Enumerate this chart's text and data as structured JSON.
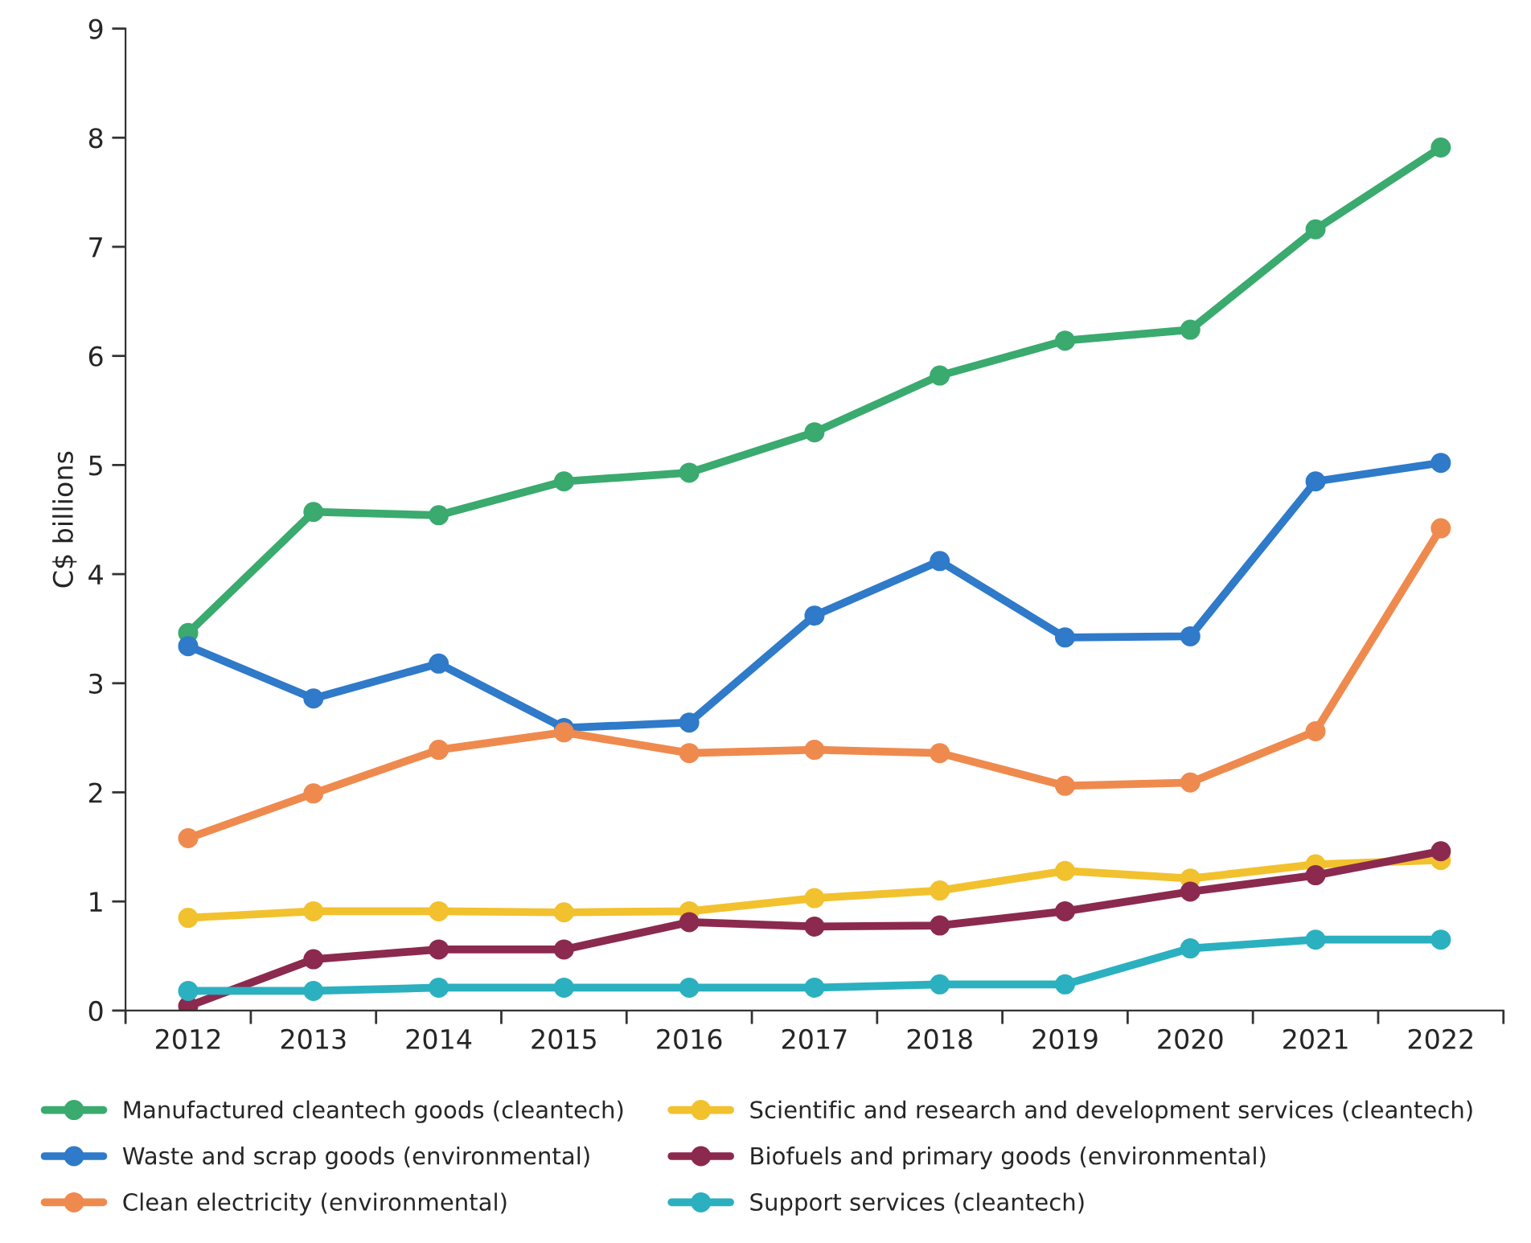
{
  "chart_data": {
    "type": "line",
    "ylabel": "C$ billions",
    "categories": [
      "2012",
      "2013",
      "2014",
      "2015",
      "2016",
      "2017",
      "2018",
      "2019",
      "2020",
      "2021",
      "2022"
    ],
    "ylim": [
      0,
      9
    ],
    "yticks": [
      0,
      1,
      2,
      3,
      4,
      5,
      6,
      7,
      8,
      9
    ],
    "grid": false,
    "legend": "bottom",
    "marker": "circle",
    "line_style": "solid",
    "series": [
      {
        "name": "Manufactured cleantech goods (cleantech)",
        "color": "#3aaa6e",
        "values": [
          3.46,
          4.57,
          4.54,
          4.85,
          4.93,
          5.3,
          5.82,
          6.14,
          6.24,
          7.16,
          7.91
        ]
      },
      {
        "name": "Waste and scrap goods (environmental)",
        "color": "#2f7ac9",
        "values": [
          3.34,
          2.86,
          3.18,
          2.59,
          2.64,
          3.62,
          4.12,
          3.42,
          3.43,
          4.85,
          5.02
        ]
      },
      {
        "name": "Clean electricity (environmental)",
        "color": "#ef8a4f",
        "values": [
          1.58,
          1.99,
          2.39,
          2.55,
          2.36,
          2.39,
          2.36,
          2.06,
          2.09,
          2.56,
          4.42
        ]
      },
      {
        "name": "Scientific and research and development services (cleantech)",
        "color": "#f2c12e",
        "values": [
          0.85,
          0.91,
          0.91,
          0.9,
          0.91,
          1.03,
          1.1,
          1.28,
          1.21,
          1.34,
          1.38
        ]
      },
      {
        "name": "Biofuels and primary goods (environmental)",
        "color": "#8b2a4e",
        "values": [
          0.04,
          0.47,
          0.56,
          0.56,
          0.81,
          0.77,
          0.78,
          0.91,
          1.09,
          1.24,
          1.46
        ]
      },
      {
        "name": "Support services (cleantech)",
        "color": "#2bb0c0",
        "values": [
          0.18,
          0.18,
          0.21,
          0.21,
          0.21,
          0.21,
          0.24,
          0.24,
          0.57,
          0.65,
          0.65
        ]
      }
    ]
  }
}
